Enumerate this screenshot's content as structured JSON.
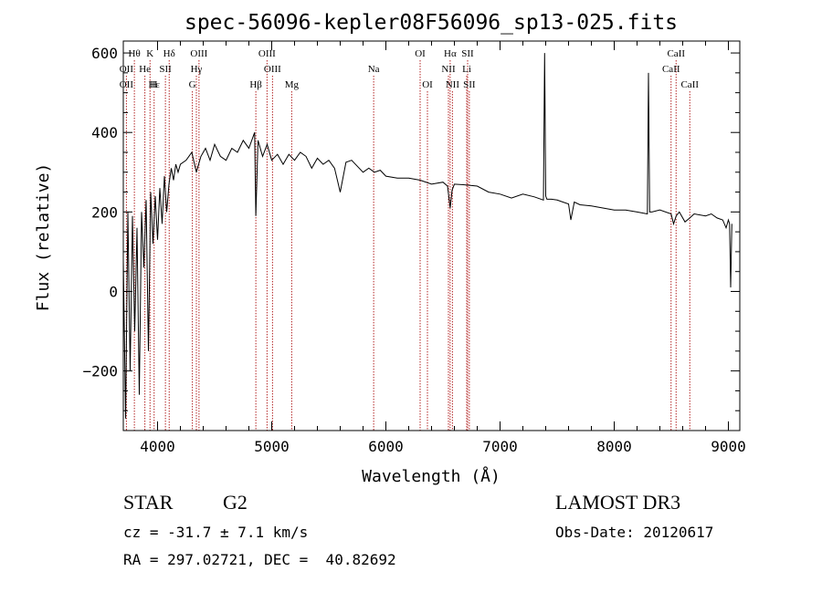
{
  "chart_data": {
    "type": "line",
    "title": "spec-56096-kepler08F56096_sp13-025.fits",
    "xlabel": "Wavelength (Å)",
    "ylabel": "Flux (relative)",
    "xlim": [
      3700,
      9100
    ],
    "ylim": [
      -350,
      630
    ],
    "x_ticks": [
      4000,
      5000,
      6000,
      7000,
      8000,
      9000
    ],
    "y_ticks": [
      -200,
      0,
      200,
      400,
      600
    ],
    "grid": false,
    "line_color": "#000000",
    "marker_color": "#b22222",
    "series": [
      {
        "name": "spectrum",
        "x": [
          3700,
          3720,
          3740,
          3760,
          3780,
          3800,
          3820,
          3840,
          3860,
          3880,
          3900,
          3920,
          3940,
          3960,
          3980,
          4000,
          4020,
          4040,
          4060,
          4080,
          4100,
          4120,
          4140,
          4160,
          4180,
          4200,
          4250,
          4300,
          4340,
          4380,
          4420,
          4460,
          4500,
          4550,
          4600,
          4650,
          4700,
          4750,
          4800,
          4850,
          4861,
          4880,
          4920,
          4960,
          5000,
          5050,
          5100,
          5150,
          5200,
          5250,
          5300,
          5350,
          5400,
          5450,
          5500,
          5550,
          5600,
          5650,
          5700,
          5750,
          5800,
          5850,
          5900,
          5950,
          6000,
          6100,
          6200,
          6300,
          6400,
          6500,
          6540,
          6563,
          6580,
          6600,
          6700,
          6800,
          6900,
          7000,
          7100,
          7200,
          7300,
          7380,
          7390,
          7400,
          7410,
          7450,
          7500,
          7550,
          7600,
          7620,
          7650,
          7700,
          7800,
          7900,
          8000,
          8100,
          8200,
          8290,
          8300,
          8310,
          8330,
          8400,
          8498,
          8520,
          8542,
          8570,
          8620,
          8662,
          8700,
          8800,
          8850,
          8900,
          8950,
          8980,
          9000,
          9010,
          9020,
          9030
        ],
        "y": [
          80,
          -320,
          200,
          -200,
          190,
          -100,
          160,
          -260,
          200,
          60,
          230,
          -150,
          250,
          120,
          240,
          130,
          260,
          170,
          290,
          200,
          270,
          310,
          280,
          320,
          300,
          320,
          330,
          350,
          300,
          340,
          360,
          330,
          370,
          340,
          330,
          360,
          350,
          380,
          360,
          400,
          190,
          380,
          340,
          370,
          330,
          345,
          320,
          345,
          330,
          350,
          340,
          310,
          335,
          320,
          330,
          310,
          250,
          325,
          330,
          315,
          300,
          310,
          300,
          305,
          290,
          285,
          285,
          280,
          270,
          275,
          265,
          210,
          255,
          270,
          268,
          265,
          250,
          245,
          235,
          245,
          238,
          230,
          600,
          240,
          232,
          232,
          230,
          225,
          220,
          180,
          225,
          218,
          215,
          210,
          205,
          205,
          200,
          195,
          550,
          200,
          200,
          205,
          195,
          170,
          190,
          200,
          175,
          185,
          195,
          190,
          195,
          185,
          180,
          160,
          180,
          170,
          10,
          170
        ]
      }
    ],
    "line_markers": [
      {
        "label": "Hθ",
        "x": 3797,
        "row": 1
      },
      {
        "label": "K",
        "x": 3934,
        "row": 1
      },
      {
        "label": "Hδ",
        "x": 4102,
        "row": 1
      },
      {
        "label": "OIII",
        "x": 4363,
        "row": 1
      },
      {
        "label": "OIII",
        "x": 4959,
        "row": 1
      },
      {
        "label": "OI",
        "x": 6300,
        "row": 1
      },
      {
        "label": "Hα",
        "x": 6563,
        "row": 1
      },
      {
        "label": "SII",
        "x": 6716,
        "row": 1
      },
      {
        "label": "CaII",
        "x": 8542,
        "row": 1
      },
      {
        "label": "OII",
        "x": 3727,
        "row": 2
      },
      {
        "label": "He",
        "x": 3889,
        "row": 2
      },
      {
        "label": "SII",
        "x": 4069,
        "row": 2
      },
      {
        "label": "Hγ",
        "x": 4340,
        "row": 2
      },
      {
        "label": "OIII",
        "x": 5007,
        "row": 2
      },
      {
        "label": "Na",
        "x": 5893,
        "row": 2
      },
      {
        "label": "NII",
        "x": 6548,
        "row": 2
      },
      {
        "label": "Li",
        "x": 6708,
        "row": 2
      },
      {
        "label": "CaII",
        "x": 8498,
        "row": 2
      },
      {
        "label": "OII",
        "x": 3727,
        "row": 3
      },
      {
        "label": "Hε",
        "x": 3970,
        "row": 3
      },
      {
        "label": "H",
        "x": 3968,
        "row": 3
      },
      {
        "label": "G",
        "x": 4305,
        "row": 3
      },
      {
        "label": "Hβ",
        "x": 4861,
        "row": 3
      },
      {
        "label": "Mg",
        "x": 5175,
        "row": 3
      },
      {
        "label": "OI",
        "x": 6364,
        "row": 3
      },
      {
        "label": "NII",
        "x": 6583,
        "row": 3
      },
      {
        "label": "SII",
        "x": 6731,
        "row": 3
      },
      {
        "label": "CaII",
        "x": 8662,
        "row": 3
      }
    ]
  },
  "info": {
    "object_class": "STAR",
    "subclass": "G2",
    "survey": "LAMOST DR3",
    "cz": "cz = -31.7 ± 7.1 km/s",
    "obs_date": "Obs-Date: 20120617",
    "coords": "RA = 297.02721, DEC =  40.82692"
  }
}
